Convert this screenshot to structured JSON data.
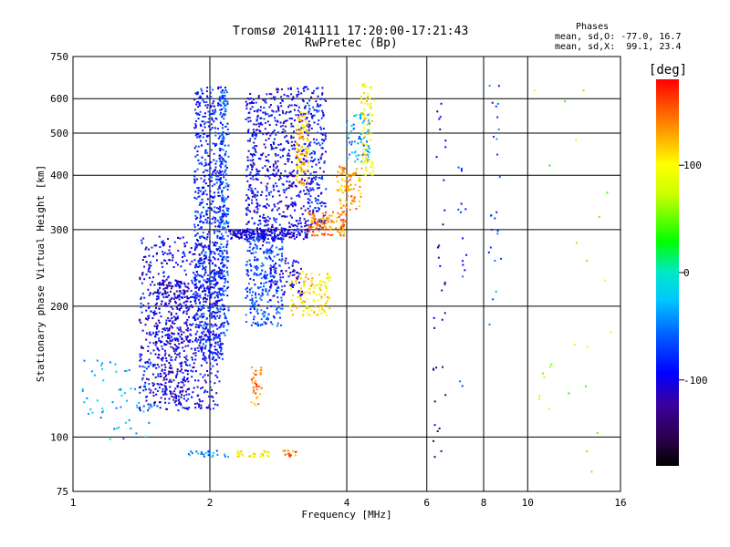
{
  "title": {
    "line1": "Tromsø 20141111 17:20:00-17:21:43",
    "line2": "RwPretec (Bp)"
  },
  "phases_box": {
    "heading": "Phases",
    "line_o": "mean, sd,O: -77.0, 16.7",
    "line_x": "mean, sd,X:  99.1, 23.4"
  },
  "chart_data": {
    "type": "scatter",
    "title": "Tromsø 20141111 17:20:00-17:21:43",
    "subtitle": "RwPretec (Bp)",
    "xlabel": "Frequency [MHz]",
    "ylabel": "Stationary phase Virtual Height [km]",
    "xscale": "log",
    "yscale": "log",
    "xlim": [
      1,
      16
    ],
    "ylim": [
      75,
      750
    ],
    "xticks": [
      1,
      2,
      4,
      6,
      8,
      10,
      16
    ],
    "xtick_labels": [
      "1",
      "2",
      "4",
      "6",
      "8",
      "10",
      "16"
    ],
    "yticks": [
      75,
      100,
      200,
      300,
      400,
      500,
      600,
      750
    ],
    "ytick_labels": [
      "75",
      "100",
      "200",
      "300",
      "400",
      "500",
      "600",
      "750"
    ],
    "grid": true,
    "colorbar": {
      "label": "[deg]",
      "range": [
        -180,
        180
      ],
      "ticks": [
        100,
        0,
        -100
      ],
      "tick_labels": [
        "100",
        "0",
        "-100"
      ]
    },
    "traces": [
      {
        "x": [
          1.4,
          2.1
        ],
        "y": [
          115,
          290
        ],
        "phase": -95,
        "count": 700
      },
      {
        "x": [
          1.5,
          1.8
        ],
        "y": [
          120,
          230
        ],
        "phase": -110,
        "count": 300
      },
      {
        "x": [
          1.85,
          2.15
        ],
        "y": [
          150,
          640
        ],
        "phase": -85,
        "count": 700
      },
      {
        "x": [
          2.1,
          2.2
        ],
        "y": [
          170,
          640
        ],
        "phase": -70,
        "count": 250
      },
      {
        "x": [
          2.4,
          2.8
        ],
        "y": [
          280,
          620
        ],
        "phase": -95,
        "count": 350
      },
      {
        "x": [
          2.2,
          3.3
        ],
        "y": [
          285,
          300
        ],
        "phase": -105,
        "count": 200
      },
      {
        "x": [
          2.8,
          3.3
        ],
        "y": [
          300,
          640
        ],
        "phase": -100,
        "count": 300
      },
      {
        "x": [
          3.1,
          3.3
        ],
        "y": [
          380,
          560
        ],
        "phase": 120,
        "count": 120
      },
      {
        "x": [
          3.3,
          3.6
        ],
        "y": [
          300,
          640
        ],
        "phase": -90,
        "count": 180
      },
      {
        "x": [
          3.3,
          4.0
        ],
        "y": [
          290,
          330
        ],
        "phase": 140,
        "count": 120
      },
      {
        "x": [
          3.8,
          4.3
        ],
        "y": [
          330,
          420
        ],
        "phase": 130,
        "count": 90
      },
      {
        "x": [
          4.3,
          4.6
        ],
        "y": [
          400,
          650
        ],
        "phase": 100,
        "count": 90
      },
      {
        "x": [
          4.0,
          4.5
        ],
        "y": [
          430,
          560
        ],
        "phase": -40,
        "count": 60
      },
      {
        "x": [
          2.4,
          2.9
        ],
        "y": [
          180,
          290
        ],
        "phase": -70,
        "count": 250
      },
      {
        "x": [
          3.0,
          3.7
        ],
        "y": [
          190,
          240
        ],
        "phase": 110,
        "count": 120
      },
      {
        "x": [
          2.7,
          3.2
        ],
        "y": [
          210,
          260
        ],
        "phase": -100,
        "count": 80
      },
      {
        "x": [
          2.45,
          2.6
        ],
        "y": [
          118,
          145
        ],
        "phase": 140,
        "count": 35
      },
      {
        "x": [
          1.05,
          1.5
        ],
        "y": [
          97,
          150
        ],
        "phase": -30,
        "count": 60
      },
      {
        "x": [
          1.75,
          2.2
        ],
        "y": [
          90,
          93
        ],
        "phase": -40,
        "count": 25
      },
      {
        "x": [
          2.3,
          2.7
        ],
        "y": [
          90,
          93
        ],
        "phase": 100,
        "count": 30
      },
      {
        "x": [
          2.9,
          3.1
        ],
        "y": [
          90,
          93
        ],
        "phase": 150,
        "count": 15
      },
      {
        "x": [
          6.2,
          6.6
        ],
        "y": [
          80,
          590
        ],
        "phase": -120,
        "count": 35
      },
      {
        "x": [
          7.0,
          7.4
        ],
        "y": [
          120,
          420
        ],
        "phase": -80,
        "count": 15
      },
      {
        "x": [
          8.2,
          8.8
        ],
        "y": [
          180,
          650
        ],
        "phase": -60,
        "count": 25
      },
      {
        "x": [
          10.0,
          15.5
        ],
        "y": [
          80,
          650
        ],
        "phase": 60,
        "count": 25
      }
    ]
  }
}
